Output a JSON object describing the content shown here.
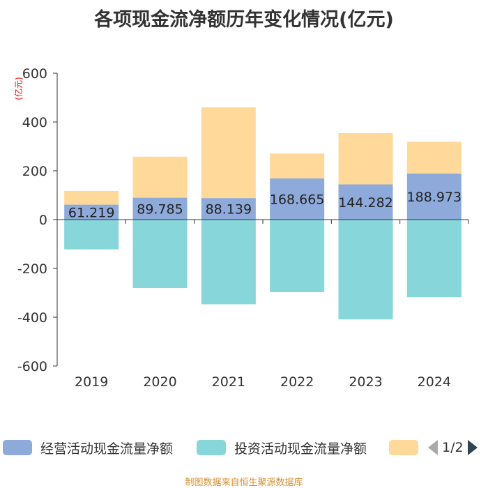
{
  "title": "各项现金流净额历年变化情况(亿元)",
  "footer": "制图数据来自恒生聚源数据库",
  "legend": {
    "items": [
      {
        "label": "经营活动现金流量净额",
        "color": "#8eaadb"
      },
      {
        "label": "投资活动现金流量净额",
        "color": "#86d6da"
      },
      {
        "label": "",
        "color": "#ffd99a"
      }
    ],
    "pager": "1/2"
  },
  "chart_data": {
    "type": "bar",
    "stacked": true,
    "title": "各项现金流净额历年变化情况(亿元)",
    "ylabel": "(亿元)",
    "ylim": [
      -600,
      600
    ],
    "yticks": [
      600,
      400,
      200,
      0,
      -200,
      -400,
      -600
    ],
    "categories": [
      "2019",
      "2020",
      "2021",
      "2022",
      "2023",
      "2024"
    ],
    "series": [
      {
        "name": "经营活动现金流量净额",
        "color": "#8eaadb",
        "values": [
          61.219,
          89.785,
          88.139,
          168.665,
          144.282,
          188.973
        ],
        "labels": [
          "61.219",
          "89.785",
          "88.139",
          "168.665",
          "144.282",
          "188.973"
        ]
      },
      {
        "name": "投资活动现金流量净额",
        "color": "#86d6da",
        "values": [
          -122,
          -280,
          -347,
          -297,
          -409,
          -318
        ]
      },
      {
        "name": "",
        "color": "#ffd99a",
        "values": [
          56,
          168,
          372,
          102,
          210,
          130
        ]
      }
    ]
  }
}
